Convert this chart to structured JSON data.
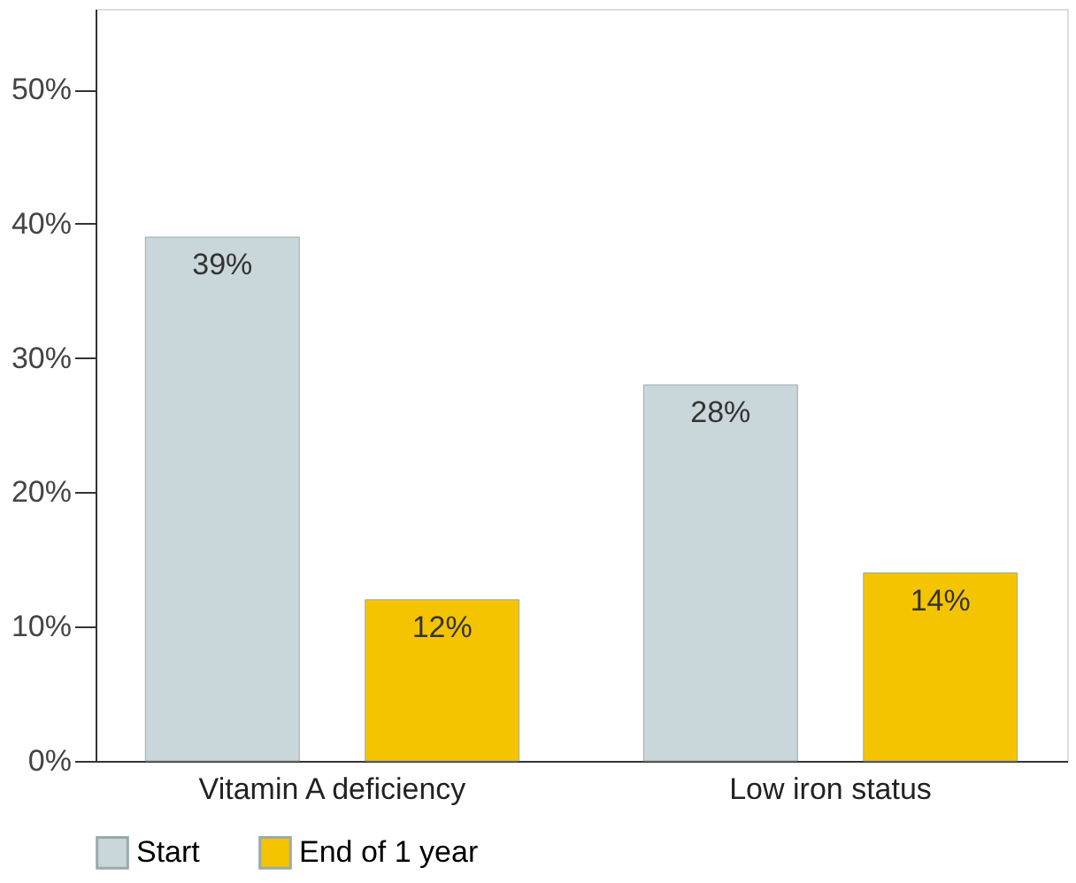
{
  "chart_data": {
    "type": "bar",
    "categories": [
      "Vitamin A deficiency",
      "Low iron status"
    ],
    "series": [
      {
        "name": "Start",
        "color": "#c9d6da",
        "values": [
          39,
          28
        ],
        "value_labels": [
          "39%",
          "28%"
        ]
      },
      {
        "name": "End of 1 year",
        "color": "#f5c400",
        "values": [
          12,
          14
        ],
        "value_labels": [
          "12%",
          "14%"
        ]
      }
    ],
    "ylim": [
      0,
      56
    ],
    "yticks": [
      {
        "value": 0,
        "label": "0%"
      },
      {
        "value": 10,
        "label": "10%"
      },
      {
        "value": 20,
        "label": "20%"
      },
      {
        "value": 30,
        "label": "30%"
      },
      {
        "value": 40,
        "label": "40%"
      },
      {
        "value": 50,
        "label": "50%"
      }
    ],
    "grid": false,
    "legend": "bottom"
  }
}
